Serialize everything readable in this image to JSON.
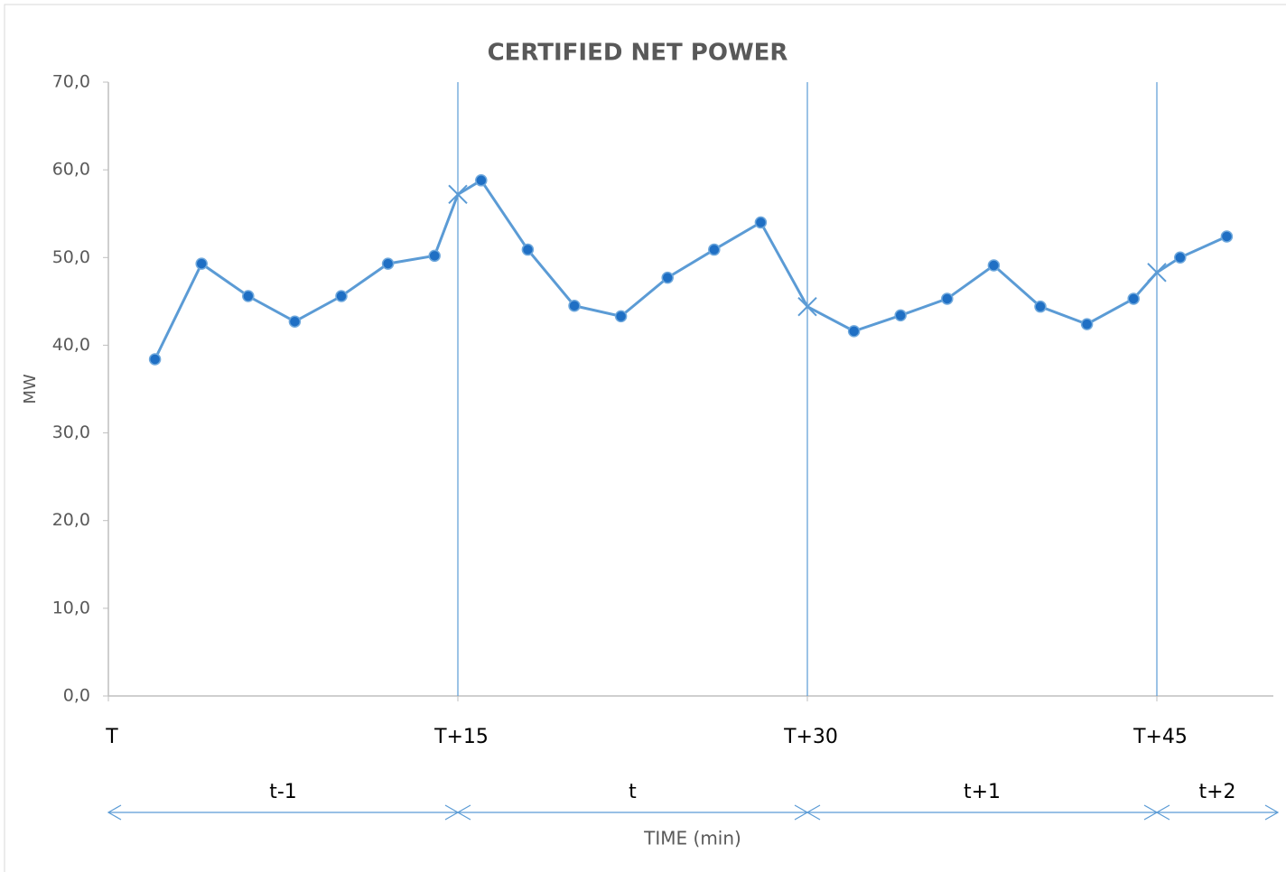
{
  "chart_data": {
    "type": "line",
    "title": "CERTIFIED NET POWER",
    "ylabel": "MW",
    "xlabel": "TIME (min)",
    "x": [
      2,
      4,
      6,
      8,
      10,
      12,
      14,
      15,
      16,
      18,
      20,
      22,
      24,
      26,
      28,
      30,
      32,
      34,
      36,
      38,
      40,
      42,
      44,
      45,
      46,
      48
    ],
    "series": [
      {
        "color": "#5b9bd5",
        "values": [
          38.4,
          49.3,
          45.6,
          42.7,
          45.6,
          49.3,
          50.2,
          57.2,
          58.8,
          50.9,
          44.5,
          43.3,
          47.7,
          50.9,
          54.0,
          44.4,
          41.6,
          43.4,
          45.3,
          49.1,
          44.4,
          42.4,
          45.3,
          48.3,
          50.0,
          52.4
        ]
      }
    ],
    "vlines": [
      15,
      30,
      45
    ],
    "xlim": [
      0,
      50
    ],
    "xticks": [
      {
        "value": 0,
        "label": "T"
      },
      {
        "value": 15,
        "label": "T+15"
      },
      {
        "value": 30,
        "label": "T+30"
      },
      {
        "value": 45,
        "label": "T+45"
      }
    ],
    "ylim": [
      0,
      70
    ],
    "yticks": [
      {
        "value": 0,
        "label": "0,0"
      },
      {
        "value": 10,
        "label": "10,0"
      },
      {
        "value": 20,
        "label": "20,0"
      },
      {
        "value": 30,
        "label": "30,0"
      },
      {
        "value": 40,
        "label": "40,0"
      },
      {
        "value": 50,
        "label": "50,0"
      },
      {
        "value": 60,
        "label": "60,0"
      },
      {
        "value": 70,
        "label": "70,0"
      }
    ],
    "periods": [
      {
        "label": "t-1",
        "start": 0,
        "end": 15
      },
      {
        "label": "t",
        "start": 15,
        "end": 30
      },
      {
        "label": "t+1",
        "start": 30,
        "end": 45
      },
      {
        "label": "t+2",
        "start": 45,
        "end": 50
      }
    ]
  }
}
